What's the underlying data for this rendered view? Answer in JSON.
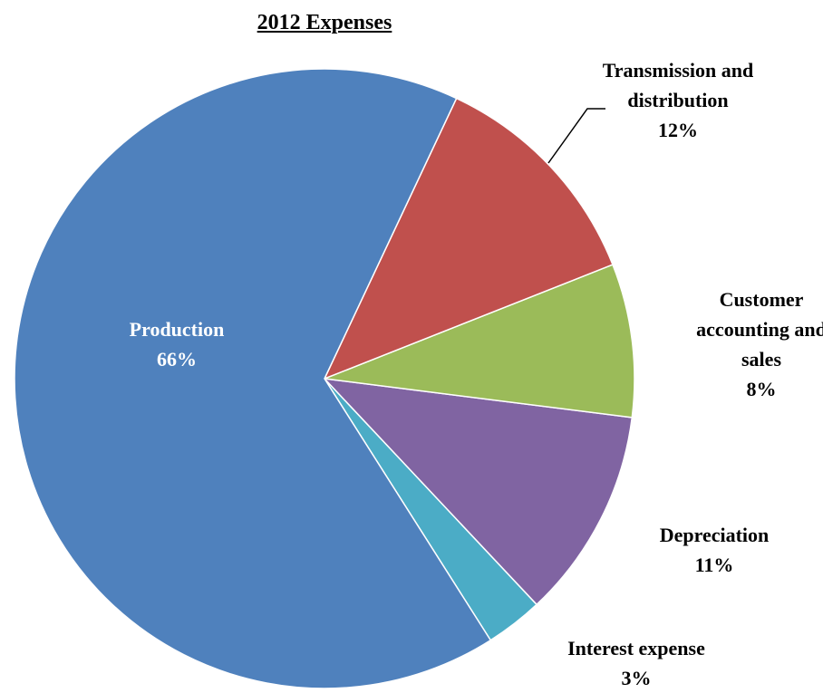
{
  "chart_data": {
    "type": "pie",
    "title": "2012 Expenses",
    "categories": [
      "Production",
      "Transmission and distribution",
      "Customer accounting and sales",
      "Depreciation",
      "Interest expense"
    ],
    "values": [
      66,
      12,
      8,
      11,
      3
    ],
    "value_labels": [
      "66%",
      "12%",
      "8%",
      "11%",
      "3%"
    ],
    "colors": [
      "#4f81bd",
      "#c0504d",
      "#9bbb59",
      "#8064a2",
      "#4bacc6"
    ]
  }
}
